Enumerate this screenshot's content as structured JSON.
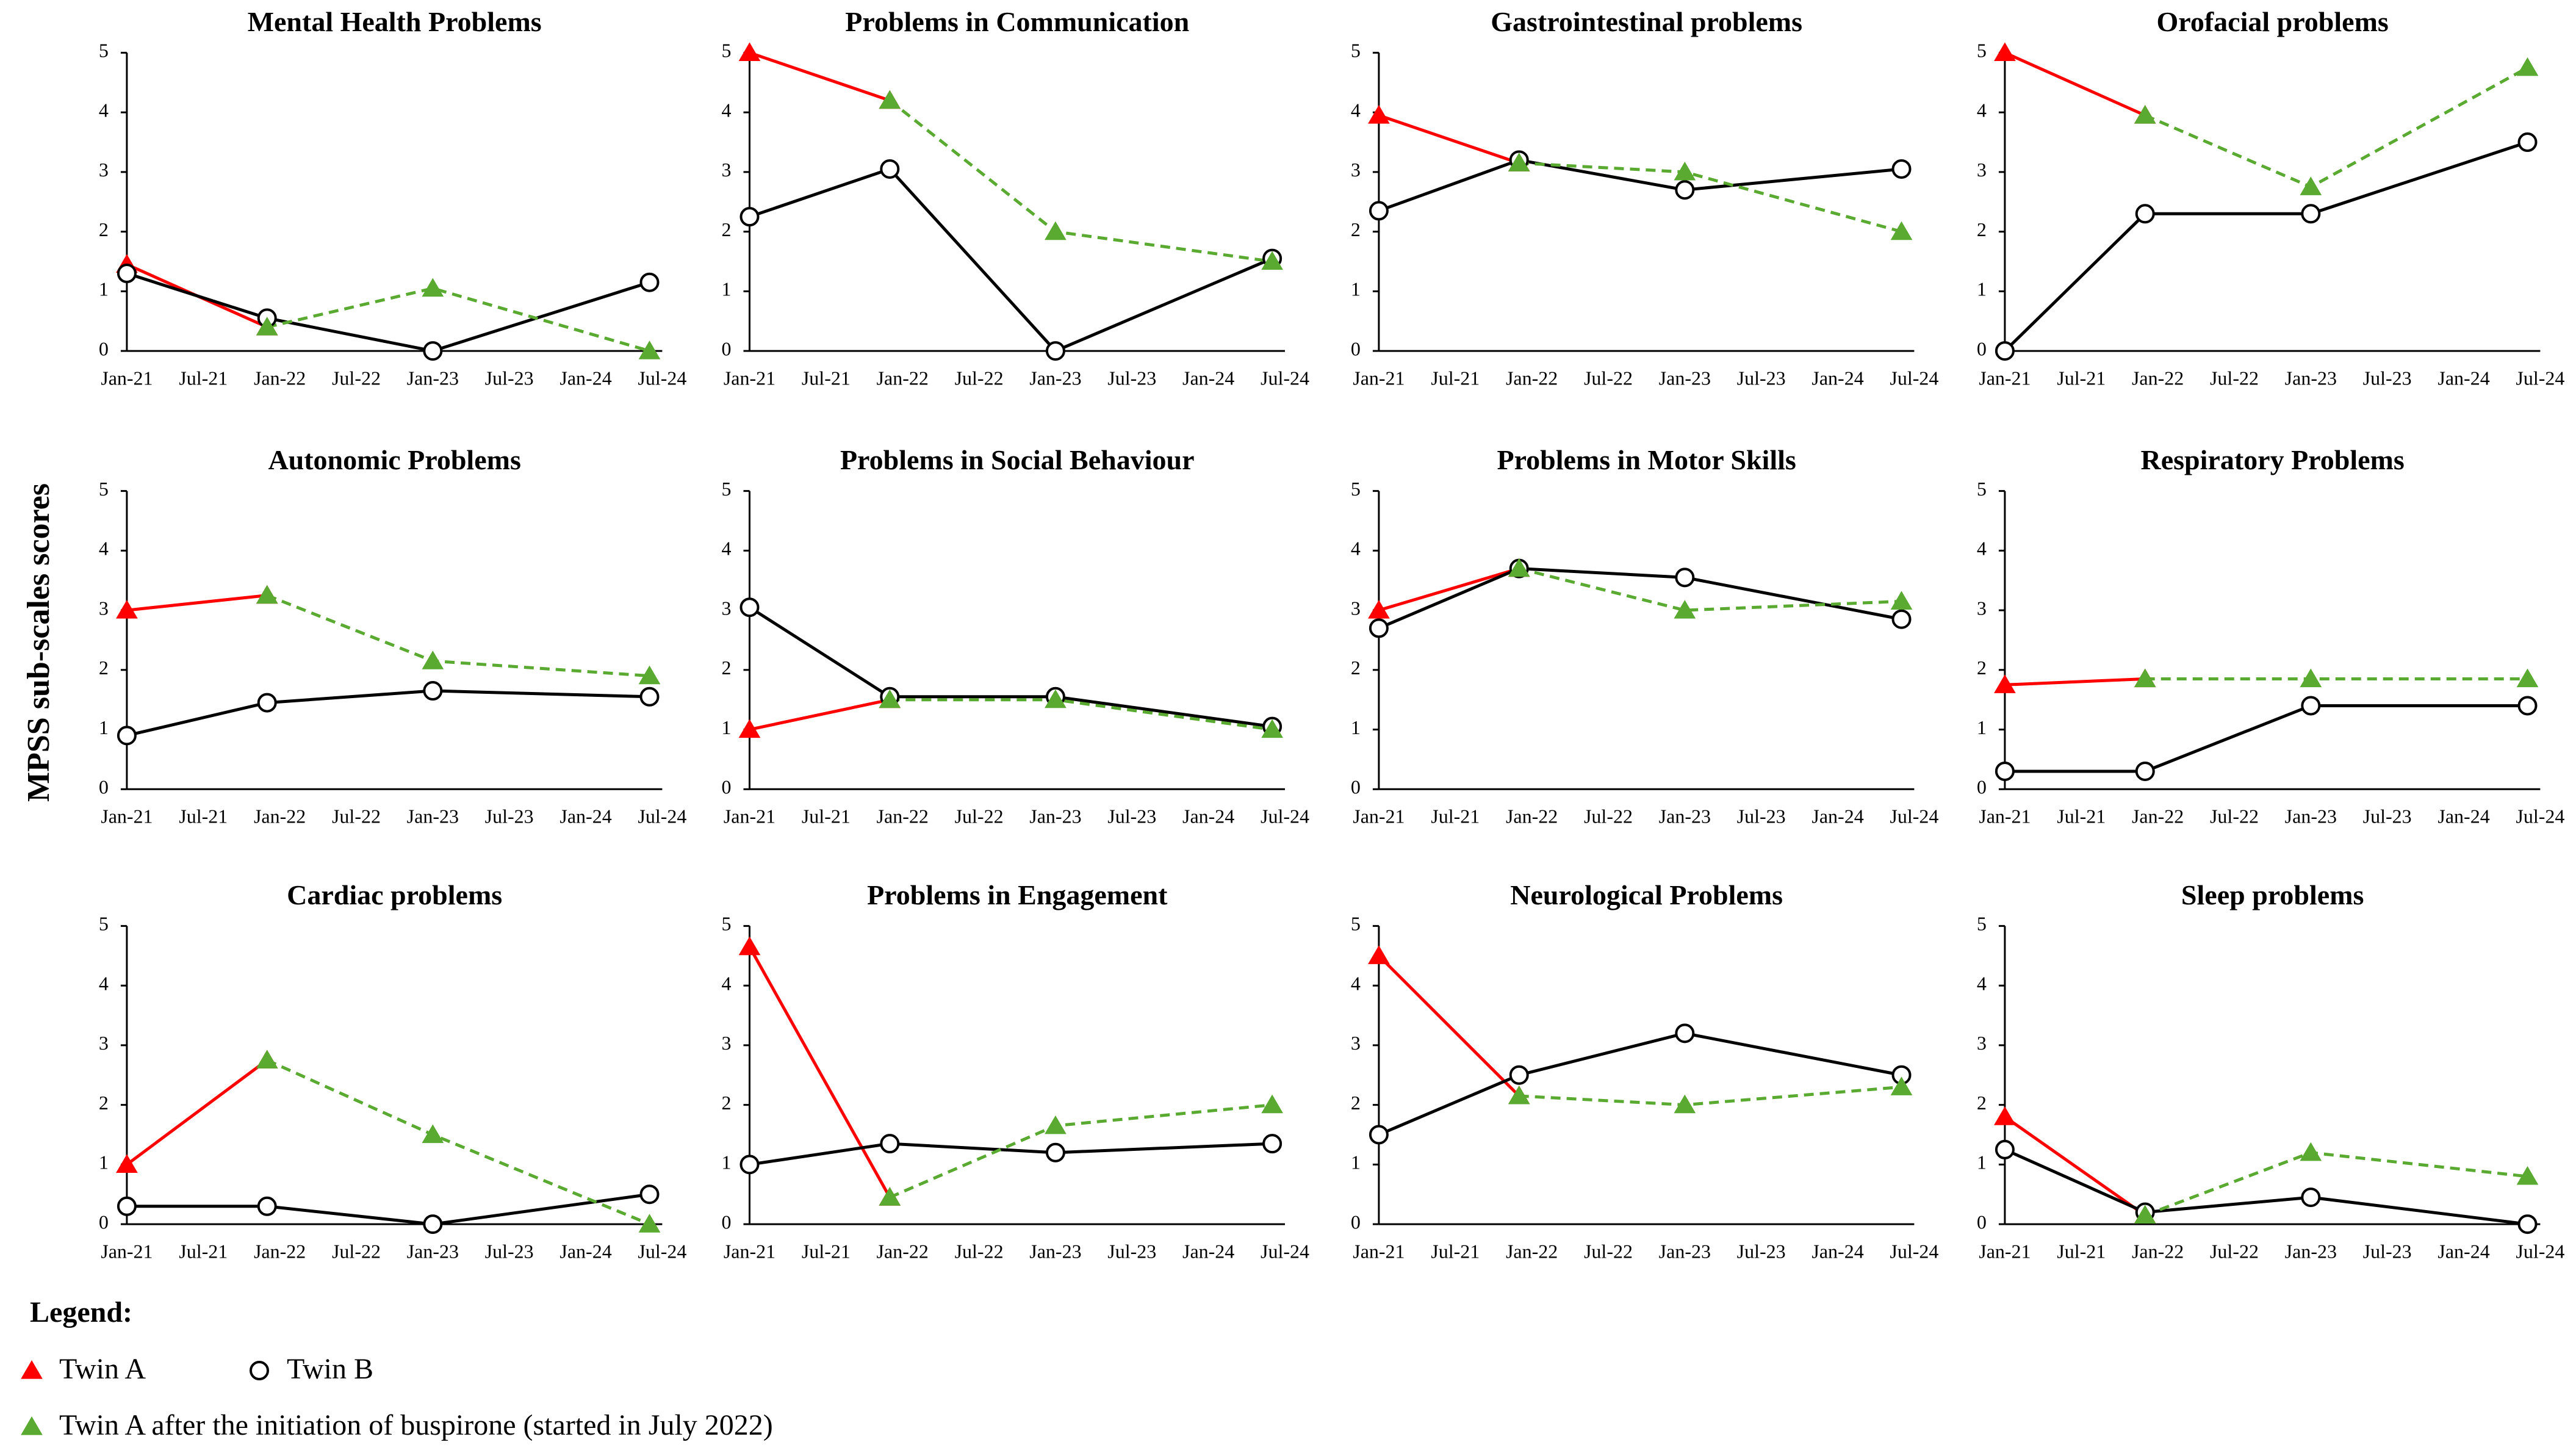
{
  "ylabel": "MPSS sub-scales scores",
  "legend": {
    "title": "Legend:",
    "entries": [
      {
        "name": "Twin A",
        "color": "#ff0000",
        "marker": "triangle",
        "dashed": false
      },
      {
        "name": "Twin B",
        "color": "#000000",
        "marker": "circle",
        "dashed": false
      },
      {
        "name": "Twin A after the initiation  of buspirone (started in July 2022)",
        "color": "#5aaa32",
        "marker": "triangle",
        "dashed": true
      }
    ]
  },
  "chart_data": [
    {
      "type": "line",
      "title": "Mental Health Problems",
      "x": [
        "Jan-21",
        "Dec-21",
        "Jan-23",
        "Jun-24"
      ],
      "series": [
        {
          "color": "#ff0000",
          "values": [
            1.45,
            0.4,
            null,
            null
          ]
        },
        {
          "color": "#000000",
          "values": [
            1.3,
            0.55,
            0,
            1.15
          ]
        },
        {
          "color": "#5aaa32",
          "values": [
            null,
            0.4,
            1.05,
            0
          ]
        }
      ],
      "xlim": [
        "Jan-21",
        "Jul-24"
      ],
      "xticks": [
        "Jan-21",
        "Jul-21",
        "Jan-22",
        "Jul-22",
        "Jan-23",
        "Jul-23",
        "Jan-24",
        "Jul-24"
      ],
      "ylim": [
        0,
        5
      ],
      "yticks": [
        0,
        1,
        2,
        3,
        4,
        5
      ]
    },
    {
      "type": "line",
      "title": "Problems in Communication",
      "x": [
        "Jan-21",
        "Dec-21",
        "Jan-23",
        "Jun-24"
      ],
      "series": [
        {
          "color": "#ff0000",
          "values": [
            5,
            4.2,
            null,
            null
          ]
        },
        {
          "color": "#000000",
          "values": [
            2.25,
            3.05,
            0,
            1.55
          ]
        },
        {
          "color": "#5aaa32",
          "values": [
            null,
            4.2,
            2,
            1.5
          ]
        }
      ],
      "xlim": [
        "Jan-21",
        "Jul-24"
      ],
      "xticks": [
        "Jan-21",
        "Jul-21",
        "Jan-22",
        "Jul-22",
        "Jan-23",
        "Jul-23",
        "Jan-24",
        "Jul-24"
      ],
      "ylim": [
        0,
        5
      ],
      "yticks": [
        0,
        1,
        2,
        3,
        4,
        5
      ]
    },
    {
      "type": "line",
      "title": "Gastrointestinal problems",
      "x": [
        "Jan-21",
        "Dec-21",
        "Jan-23",
        "Jun-24"
      ],
      "series": [
        {
          "color": "#ff0000",
          "values": [
            3.95,
            3.15,
            null,
            null
          ]
        },
        {
          "color": "#000000",
          "values": [
            2.35,
            3.2,
            2.7,
            3.05
          ]
        },
        {
          "color": "#5aaa32",
          "values": [
            null,
            3.15,
            3.0,
            2.0
          ]
        }
      ],
      "xlim": [
        "Jan-21",
        "Jul-24"
      ],
      "xticks": [
        "Jan-21",
        "Jul-21",
        "Jan-22",
        "Jul-22",
        "Jan-23",
        "Jul-23",
        "Jan-24",
        "Jul-24"
      ],
      "ylim": [
        0,
        5
      ],
      "yticks": [
        0,
        1,
        2,
        3,
        4,
        5
      ]
    },
    {
      "type": "line",
      "title": "Orofacial problems",
      "x": [
        "Jan-21",
        "Dec-21",
        "Jan-23",
        "Jun-24"
      ],
      "series": [
        {
          "color": "#ff0000",
          "values": [
            5,
            3.95,
            null,
            null
          ]
        },
        {
          "color": "#000000",
          "values": [
            0,
            2.3,
            2.3,
            3.5
          ]
        },
        {
          "color": "#5aaa32",
          "values": [
            null,
            3.95,
            2.75,
            4.75
          ]
        }
      ],
      "xlim": [
        "Jan-21",
        "Jul-24"
      ],
      "xticks": [
        "Jan-21",
        "Jul-21",
        "Jan-22",
        "Jul-22",
        "Jan-23",
        "Jul-23",
        "Jan-24",
        "Jul-24"
      ],
      "ylim": [
        0,
        5
      ],
      "yticks": [
        0,
        1,
        2,
        3,
        4,
        5
      ]
    },
    {
      "type": "line",
      "title": "Autonomic Problems",
      "x": [
        "Jan-21",
        "Dec-21",
        "Jan-23",
        "Jun-24"
      ],
      "series": [
        {
          "color": "#ff0000",
          "values": [
            3,
            3.25,
            null,
            null
          ]
        },
        {
          "color": "#000000",
          "values": [
            0.9,
            1.45,
            1.65,
            1.55
          ]
        },
        {
          "color": "#5aaa32",
          "values": [
            null,
            3.25,
            2.15,
            1.9
          ]
        }
      ],
      "xlim": [
        "Jan-21",
        "Jul-24"
      ],
      "xticks": [
        "Jan-21",
        "Jul-21",
        "Jan-22",
        "Jul-22",
        "Jan-23",
        "Jul-23",
        "Jan-24",
        "Jul-24"
      ],
      "ylim": [
        0,
        5
      ],
      "yticks": [
        0,
        1,
        2,
        3,
        4,
        5
      ]
    },
    {
      "type": "line",
      "title": "Problems in Social Behaviour",
      "x": [
        "Jan-21",
        "Dec-21",
        "Jan-23",
        "Jun-24"
      ],
      "series": [
        {
          "color": "#ff0000",
          "values": [
            1,
            1.5,
            null,
            null
          ]
        },
        {
          "color": "#000000",
          "values": [
            3.05,
            1.55,
            1.55,
            1.05
          ]
        },
        {
          "color": "#5aaa32",
          "values": [
            null,
            1.5,
            1.5,
            1.0
          ]
        }
      ],
      "xlim": [
        "Jan-21",
        "Jul-24"
      ],
      "xticks": [
        "Jan-21",
        "Jul-21",
        "Jan-22",
        "Jul-22",
        "Jan-23",
        "Jul-23",
        "Jan-24",
        "Jul-24"
      ],
      "ylim": [
        0,
        5
      ],
      "yticks": [
        0,
        1,
        2,
        3,
        4,
        5
      ]
    },
    {
      "type": "line",
      "title": "Problems in Motor Skills",
      "x": [
        "Jan-21",
        "Dec-21",
        "Jan-23",
        "Jun-24"
      ],
      "series": [
        {
          "color": "#ff0000",
          "values": [
            3,
            3.7,
            null,
            null
          ]
        },
        {
          "color": "#000000",
          "values": [
            2.7,
            3.7,
            3.55,
            2.85
          ]
        },
        {
          "color": "#5aaa32",
          "values": [
            null,
            3.7,
            3.0,
            3.15
          ]
        }
      ],
      "xlim": [
        "Jan-21",
        "Jul-24"
      ],
      "xticks": [
        "Jan-21",
        "Jul-21",
        "Jan-22",
        "Jul-22",
        "Jan-23",
        "Jul-23",
        "Jan-24",
        "Jul-24"
      ],
      "ylim": [
        0,
        5
      ],
      "yticks": [
        0,
        1,
        2,
        3,
        4,
        5
      ]
    },
    {
      "type": "line",
      "title": "Respiratory Problems",
      "x": [
        "Jan-21",
        "Dec-21",
        "Jan-23",
        "Jun-24"
      ],
      "series": [
        {
          "color": "#ff0000",
          "values": [
            1.75,
            1.85,
            null,
            null
          ]
        },
        {
          "color": "#000000",
          "values": [
            0.3,
            0.3,
            1.4,
            1.4
          ]
        },
        {
          "color": "#5aaa32",
          "values": [
            null,
            1.85,
            1.85,
            1.85
          ]
        }
      ],
      "xlim": [
        "Jan-21",
        "Jul-24"
      ],
      "xticks": [
        "Jan-21",
        "Jul-21",
        "Jan-22",
        "Jul-22",
        "Jan-23",
        "Jul-23",
        "Jan-24",
        "Jul-24"
      ],
      "ylim": [
        0,
        5
      ],
      "yticks": [
        0,
        1,
        2,
        3,
        4,
        5
      ]
    },
    {
      "type": "line",
      "title": "Cardiac problems",
      "x": [
        "Jan-21",
        "Dec-21",
        "Jan-23",
        "Jun-24"
      ],
      "series": [
        {
          "color": "#ff0000",
          "values": [
            1,
            2.75,
            null,
            null
          ]
        },
        {
          "color": "#000000",
          "values": [
            0.3,
            0.3,
            0,
            0.5
          ]
        },
        {
          "color": "#5aaa32",
          "values": [
            null,
            2.75,
            1.5,
            0
          ]
        }
      ],
      "xlim": [
        "Jan-21",
        "Jul-24"
      ],
      "xticks": [
        "Jan-21",
        "Jul-21",
        "Jan-22",
        "Jul-22",
        "Jan-23",
        "Jul-23",
        "Jan-24",
        "Jul-24"
      ],
      "ylim": [
        0,
        5
      ],
      "yticks": [
        0,
        1,
        2,
        3,
        4,
        5
      ]
    },
    {
      "type": "line",
      "title": "Problems in Engagement",
      "x": [
        "Jan-21",
        "Dec-21",
        "Jan-23",
        "Jun-24"
      ],
      "series": [
        {
          "color": "#ff0000",
          "values": [
            4.65,
            0.45,
            null,
            null
          ]
        },
        {
          "color": "#000000",
          "values": [
            1.0,
            1.35,
            1.2,
            1.35
          ]
        },
        {
          "color": "#5aaa32",
          "values": [
            null,
            0.45,
            1.65,
            2.0
          ]
        }
      ],
      "xlim": [
        "Jan-21",
        "Jul-24"
      ],
      "xticks": [
        "Jan-21",
        "Jul-21",
        "Jan-22",
        "Jul-22",
        "Jan-23",
        "Jul-23",
        "Jan-24",
        "Jul-24"
      ],
      "ylim": [
        0,
        5
      ],
      "yticks": [
        0,
        1,
        2,
        3,
        4,
        5
      ]
    },
    {
      "type": "line",
      "title": "Neurological Problems",
      "x": [
        "Jan-21",
        "Dec-21",
        "Jan-23",
        "Jun-24"
      ],
      "series": [
        {
          "color": "#ff0000",
          "values": [
            4.5,
            2.15,
            null,
            null
          ]
        },
        {
          "color": "#000000",
          "values": [
            1.5,
            2.5,
            3.2,
            2.5
          ]
        },
        {
          "color": "#5aaa32",
          "values": [
            null,
            2.15,
            2.0,
            2.3
          ]
        }
      ],
      "xlim": [
        "Jan-21",
        "Jul-24"
      ],
      "xticks": [
        "Jan-21",
        "Jul-21",
        "Jan-22",
        "Jul-22",
        "Jan-23",
        "Jul-23",
        "Jan-24",
        "Jul-24"
      ],
      "ylim": [
        0,
        5
      ],
      "yticks": [
        0,
        1,
        2,
        3,
        4,
        5
      ]
    },
    {
      "type": "line",
      "title": "Sleep problems",
      "x": [
        "Jan-21",
        "Dec-21",
        "Jan-23",
        "Jun-24"
      ],
      "series": [
        {
          "color": "#ff0000",
          "values": [
            1.8,
            0.15,
            null,
            null
          ]
        },
        {
          "color": "#000000",
          "values": [
            1.25,
            0.2,
            0.45,
            0
          ]
        },
        {
          "color": "#5aaa32",
          "values": [
            null,
            0.15,
            1.2,
            0.8
          ]
        }
      ],
      "xlim": [
        "Jan-21",
        "Jul-24"
      ],
      "xticks": [
        "Jan-21",
        "Jul-21",
        "Jan-22",
        "Jul-22",
        "Jan-23",
        "Jul-23",
        "Jan-24",
        "Jul-24"
      ],
      "ylim": [
        0,
        5
      ],
      "yticks": [
        0,
        1,
        2,
        3,
        4,
        5
      ]
    }
  ]
}
